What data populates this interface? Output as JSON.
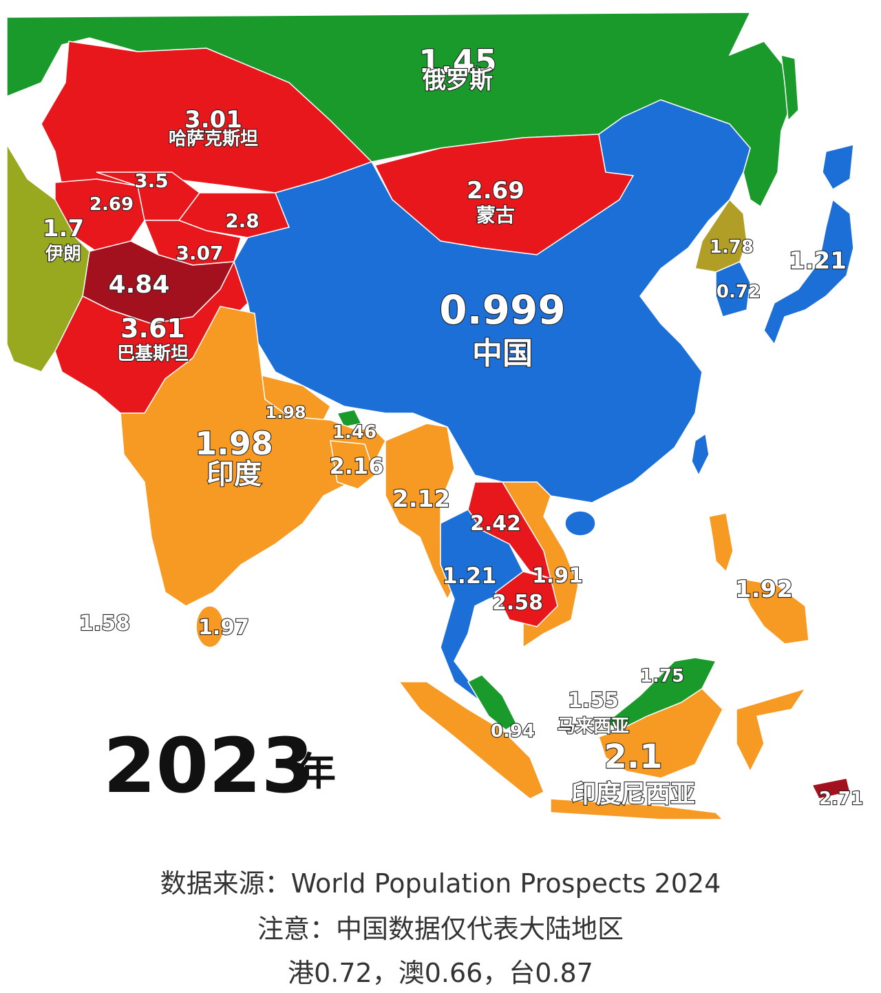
{
  "map": {
    "year": "2023",
    "year_suffix": "年",
    "colors": {
      "russia": "#1b9a2c",
      "central_asia": "#e8171c",
      "dark_red": "#a4111e",
      "china": "#1b6fd6",
      "india": "#f79a23",
      "iran": "#98a81f",
      "korea": "#b09e26",
      "ocean": "#ffffff"
    },
    "regions": [
      {
        "id": "russia",
        "value": "1.45",
        "name": "俄罗斯"
      },
      {
        "id": "kazakhstan",
        "value": "3.01",
        "name": "哈萨克斯坦"
      },
      {
        "id": "uzbekistan",
        "value": "3.5",
        "name": ""
      },
      {
        "id": "turkmenistan",
        "value": "2.69",
        "name": ""
      },
      {
        "id": "kyrgyzstan",
        "value": "2.8",
        "name": ""
      },
      {
        "id": "tajikistan",
        "value": "3.07",
        "name": ""
      },
      {
        "id": "afghanistan",
        "value": "4.84",
        "name": ""
      },
      {
        "id": "pakistan",
        "value": "3.61",
        "name": "巴基斯坦"
      },
      {
        "id": "iran",
        "value": "1.7",
        "name": "伊朗"
      },
      {
        "id": "mongolia",
        "value": "2.69",
        "name": "蒙古"
      },
      {
        "id": "china",
        "value": "0.999",
        "name": "中国"
      },
      {
        "id": "north_korea",
        "value": "1.78",
        "name": ""
      },
      {
        "id": "south_korea",
        "value": "0.72",
        "name": ""
      },
      {
        "id": "japan",
        "value": "1.21",
        "name": ""
      },
      {
        "id": "india",
        "value": "1.98",
        "name": "印度"
      },
      {
        "id": "nepal",
        "value": "1.98",
        "name": ""
      },
      {
        "id": "bhutan",
        "value": "1.46",
        "name": ""
      },
      {
        "id": "bangladesh",
        "value": "2.16",
        "name": ""
      },
      {
        "id": "myanmar",
        "value": "2.12",
        "name": ""
      },
      {
        "id": "laos",
        "value": "2.42",
        "name": ""
      },
      {
        "id": "thailand",
        "value": "1.21",
        "name": ""
      },
      {
        "id": "vietnam",
        "value": "1.91",
        "name": ""
      },
      {
        "id": "cambodia",
        "value": "2.58",
        "name": ""
      },
      {
        "id": "philippines",
        "value": "1.92",
        "name": ""
      },
      {
        "id": "maldives",
        "value": "1.58",
        "name": ""
      },
      {
        "id": "sri_lanka",
        "value": "1.97",
        "name": ""
      },
      {
        "id": "brunei",
        "value": "1.75",
        "name": ""
      },
      {
        "id": "malaysia",
        "value": "1.55",
        "name": "马来西亚"
      },
      {
        "id": "singapore",
        "value": "0.94",
        "name": ""
      },
      {
        "id": "indonesia",
        "value": "2.1",
        "name": "印度尼西亚"
      },
      {
        "id": "timor_leste",
        "value": "2.71",
        "name": ""
      }
    ]
  },
  "footer": {
    "source": "数据来源：World Population Prospects 2024",
    "note": "注意：中国数据仅代表大陆地区",
    "extra": "港0.72，澳0.66，台0.87"
  }
}
